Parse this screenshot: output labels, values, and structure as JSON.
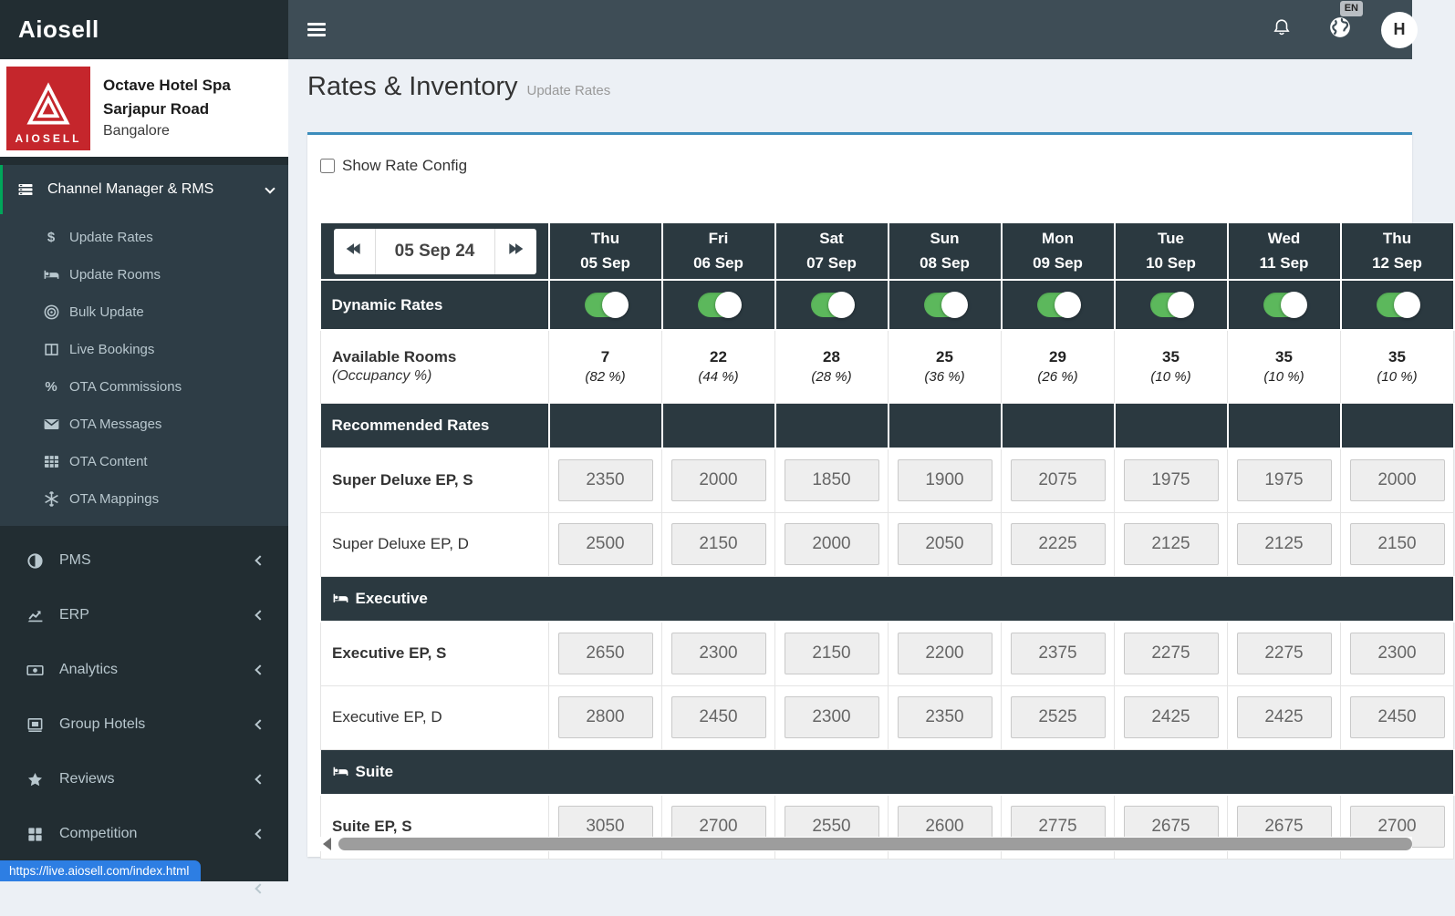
{
  "colors": {
    "topbar": "#3e4d56",
    "sidebar": "#222d32",
    "sidebar_open": "#2e3d46",
    "green_accent": "#00a65a",
    "toggle_green": "#5cb85c",
    "table_dark": "#2b3940",
    "card_accent_blue": "#3c8dbc",
    "brand_red": "#c5262c",
    "tooltip_blue": "#2d7ee3"
  },
  "topbar": {
    "brand": "Aiosell",
    "language_badge": "EN",
    "avatar_initial": "H"
  },
  "sidebar": {
    "hotel": {
      "logo_text": "AIOSELL",
      "name_line1": "Octave Hotel Spa",
      "name_line2": "Sarjapur Road",
      "city": "Bangalore"
    },
    "active_section": {
      "label": "Channel Manager & RMS",
      "icon": "list-icon",
      "items": [
        {
          "label": "Update Rates",
          "icon": "dollar-icon"
        },
        {
          "label": "Update Rooms",
          "icon": "bed-icon"
        },
        {
          "label": "Bulk Update",
          "icon": "bullseye-icon"
        },
        {
          "label": "Live Bookings",
          "icon": "columns-icon"
        },
        {
          "label": "OTA Commissions",
          "icon": "percent-icon"
        },
        {
          "label": "OTA Messages",
          "icon": "envelope-icon"
        },
        {
          "label": "OTA Content",
          "icon": "table-icon"
        },
        {
          "label": "OTA Mappings",
          "icon": "snowflake-icon"
        }
      ]
    },
    "items": [
      {
        "label": "PMS",
        "icon": "half-circle-icon"
      },
      {
        "label": "ERP",
        "icon": "chart-line-icon"
      },
      {
        "label": "Analytics",
        "icon": "money-icon"
      },
      {
        "label": "Group Hotels",
        "icon": "images-icon"
      },
      {
        "label": "Reviews",
        "icon": "star-icon"
      },
      {
        "label": "Competition",
        "icon": "grid-icon"
      },
      {
        "label": "",
        "icon": null
      }
    ]
  },
  "page": {
    "title": "Rates & Inventory",
    "subtitle": "Update Rates",
    "show_rate_config_label": "Show Rate Config"
  },
  "table": {
    "date_nav": {
      "current": "05 Sep 24"
    },
    "columns": [
      {
        "day": "Thu",
        "date": "05 Sep"
      },
      {
        "day": "Fri",
        "date": "06 Sep"
      },
      {
        "day": "Sat",
        "date": "07 Sep"
      },
      {
        "day": "Sun",
        "date": "08 Sep"
      },
      {
        "day": "Mon",
        "date": "09 Sep"
      },
      {
        "day": "Tue",
        "date": "10 Sep"
      },
      {
        "day": "Wed",
        "date": "11 Sep"
      },
      {
        "day": "Thu",
        "date": "12 Sep"
      }
    ],
    "dynamic_rates": {
      "label": "Dynamic Rates",
      "values": [
        true,
        true,
        true,
        true,
        true,
        true,
        true,
        true
      ]
    },
    "available_rooms": {
      "label": "Available Rooms",
      "sublabel": "(Occupancy %)",
      "rooms": [
        "7",
        "22",
        "28",
        "25",
        "29",
        "35",
        "35",
        "35"
      ],
      "occupancy": [
        "(82 %)",
        "(44 %)",
        "(28 %)",
        "(36 %)",
        "(26 %)",
        "(10 %)",
        "(10 %)",
        "(10 %)"
      ]
    },
    "sections": [
      {
        "header": "Recommended Rates",
        "icon": null,
        "rows": [
          {
            "label": "Super Deluxe EP, S",
            "bold": true,
            "rates": [
              "2350",
              "2000",
              "1850",
              "1900",
              "2075",
              "1975",
              "1975",
              "2000"
            ]
          },
          {
            "label": "Super Deluxe EP, D",
            "bold": false,
            "rates": [
              "2500",
              "2150",
              "2000",
              "2050",
              "2225",
              "2125",
              "2125",
              "2150"
            ]
          }
        ]
      },
      {
        "header": "Executive",
        "icon": "bed-icon",
        "rows": [
          {
            "label": "Executive EP, S",
            "bold": true,
            "rates": [
              "2650",
              "2300",
              "2150",
              "2200",
              "2375",
              "2275",
              "2275",
              "2300"
            ]
          },
          {
            "label": "Executive EP, D",
            "bold": false,
            "rates": [
              "2800",
              "2450",
              "2300",
              "2350",
              "2525",
              "2425",
              "2425",
              "2450"
            ]
          }
        ]
      },
      {
        "header": "Suite",
        "icon": "bed-icon",
        "rows": [
          {
            "label": "Suite EP, S",
            "bold": true,
            "rates": [
              "3050",
              "2700",
              "2550",
              "2600",
              "2775",
              "2675",
              "2675",
              "2700"
            ]
          }
        ]
      }
    ]
  },
  "statusbar": {
    "url": "https://live.aiosell.com/index.html"
  }
}
